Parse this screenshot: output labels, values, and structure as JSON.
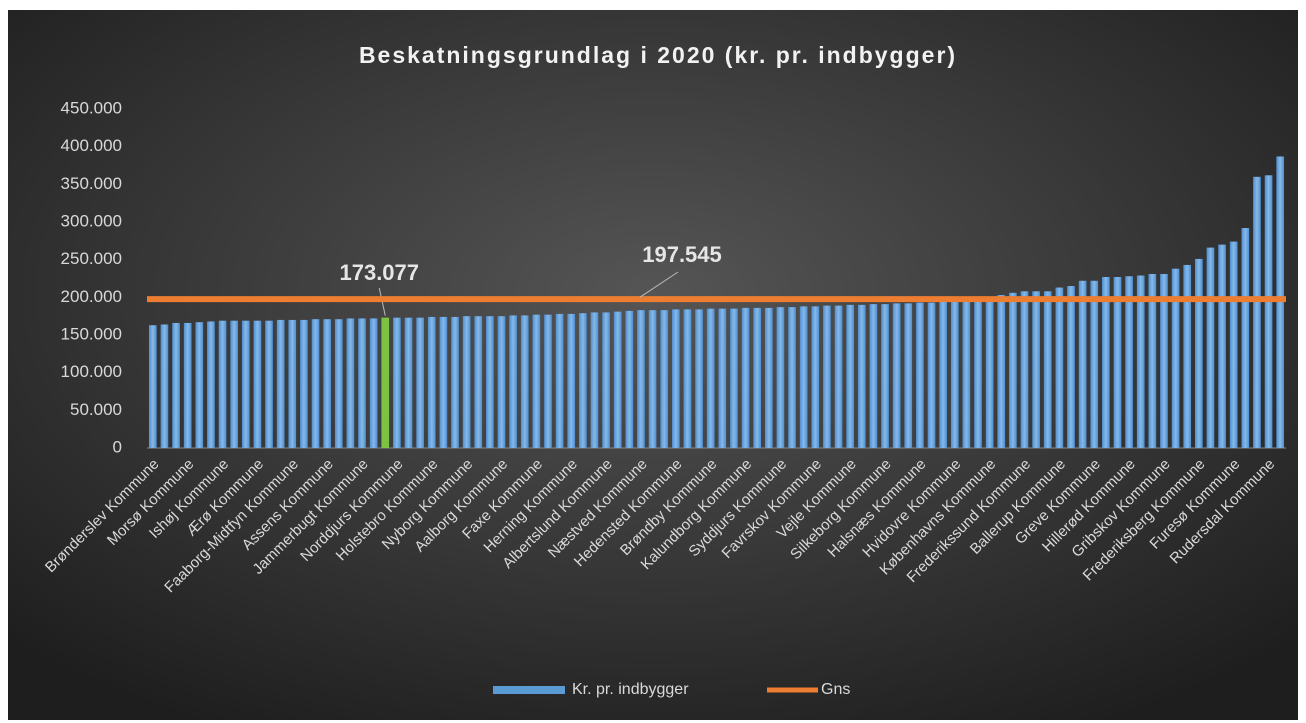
{
  "chart_data": {
    "type": "bar",
    "title": "Beskatningsgrundlag i 2020 (kr. pr. indbygger)",
    "categories": [
      "Brønderslev Kommune",
      null,
      null,
      "Morsø Kommune",
      null,
      null,
      "Ishøj Kommune",
      null,
      null,
      "Ærø Kommune",
      null,
      null,
      "Faaborg-Midtfyn Kommune",
      null,
      null,
      "Assens Kommune",
      null,
      null,
      "Jammerbugt Kommune",
      null,
      null,
      "Norddjurs Kommune",
      null,
      null,
      "Holstebro Kommune",
      null,
      null,
      "Nyborg Kommune",
      null,
      null,
      "Aalborg Kommune",
      null,
      null,
      "Faxe Kommune",
      null,
      null,
      "Herning Kommune",
      null,
      null,
      "Albertslund Kommune",
      null,
      null,
      "Næstved Kommune",
      null,
      null,
      "Hedensted Kommune",
      null,
      null,
      "Brøndby Kommune",
      null,
      null,
      "Kalundborg Kommune",
      null,
      null,
      "Syddjurs Kommune",
      null,
      null,
      "Favrskov Kommune",
      null,
      null,
      "Vejle Kommune",
      null,
      null,
      "Silkeborg Kommune",
      null,
      null,
      "Halsnæs Kommune",
      null,
      null,
      "Hvidovre Kommune",
      null,
      null,
      "Københavns Kommune",
      null,
      null,
      "Frederikssund Kommune",
      null,
      null,
      "Ballerup Kommune",
      null,
      null,
      "Greve Kommune",
      null,
      null,
      "Hillerød Kommune",
      null,
      null,
      "Gribskov Kommune",
      null,
      null,
      "Frederiksberg Kommune",
      null,
      null,
      "Furesø Kommune",
      null,
      null,
      "Rudersdal Kommune",
      null
    ],
    "series": [
      {
        "name": "Kr. pr. indbygger",
        "color": "#5b9bd5",
        "values": [
          163000,
          164000,
          166000,
          166000,
          167000,
          168000,
          169000,
          169000,
          169000,
          169000,
          169000,
          170000,
          170000,
          170000,
          171000,
          171000,
          171000,
          172000,
          172000,
          172000,
          173077,
          173000,
          173000,
          173000,
          174000,
          174000,
          174000,
          175000,
          175000,
          175000,
          175000,
          176000,
          176000,
          177000,
          177000,
          178000,
          178000,
          179000,
          180000,
          180000,
          181000,
          182000,
          183000,
          183000,
          183000,
          184000,
          184000,
          184000,
          185000,
          185000,
          185000,
          186000,
          186000,
          186000,
          187000,
          187000,
          188000,
          188000,
          189000,
          189000,
          190000,
          190000,
          191000,
          191000,
          192000,
          192000,
          193000,
          193000,
          194000,
          194000,
          195000,
          196000,
          197000,
          203000,
          206000,
          208000,
          208000,
          208000,
          213000,
          215000,
          222000,
          222000,
          227000,
          227000,
          228000,
          229000,
          231000,
          231000,
          238000,
          243000,
          251000,
          266000,
          270000,
          274000,
          292000,
          360000,
          362000,
          387000
        ],
        "highlight": {
          "index": 20,
          "color": "#7cc243",
          "label": "173.077"
        }
      },
      {
        "name": "Gns",
        "color": "#ed7d31",
        "value": 197545,
        "value_label": "197.545"
      }
    ],
    "ylim": [
      0,
      450000
    ],
    "yticks": [
      0,
      {
        "value": 50000,
        "label": "50.000"
      },
      {
        "value": 100000,
        "label": "100.000"
      },
      {
        "value": 150000,
        "label": "150.000"
      },
      {
        "value": 200000,
        "label": "200.000"
      },
      {
        "value": 250000,
        "label": "250.000"
      },
      {
        "value": 300000,
        "label": "300.000"
      },
      {
        "value": 350000,
        "label": "350.000"
      },
      {
        "value": 400000,
        "label": "400.000"
      },
      {
        "value": 450000,
        "label": "450.000"
      }
    ],
    "grid": false,
    "legend": "bottom"
  }
}
